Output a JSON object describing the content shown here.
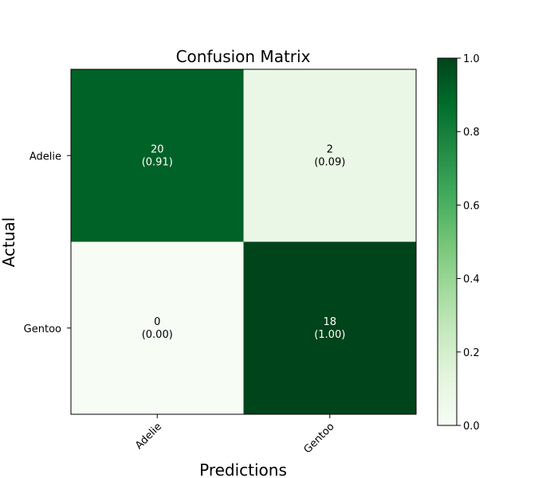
{
  "chart_data": {
    "type": "heatmap",
    "title": "Confusion Matrix",
    "xlabel": "Predictions",
    "ylabel": "Actual",
    "x_categories": [
      "Adelie",
      "Gentoo"
    ],
    "y_categories": [
      "Adelie",
      "Gentoo"
    ],
    "counts": [
      [
        20,
        2
      ],
      [
        0,
        18
      ]
    ],
    "normalized": [
      [
        0.91,
        0.09
      ],
      [
        0.0,
        1.0
      ]
    ],
    "cell_text": [
      [
        "20\n(0.91)",
        "2\n(0.09)"
      ],
      [
        "0\n(0.00)",
        "18\n(1.00)"
      ]
    ],
    "colorbar": {
      "range": [
        0.0,
        1.0
      ],
      "ticks": [
        "0.0",
        "0.2",
        "0.4",
        "0.6",
        "0.8",
        "1.0"
      ],
      "colormap": "Greens"
    },
    "grid": false,
    "legend": "none"
  }
}
